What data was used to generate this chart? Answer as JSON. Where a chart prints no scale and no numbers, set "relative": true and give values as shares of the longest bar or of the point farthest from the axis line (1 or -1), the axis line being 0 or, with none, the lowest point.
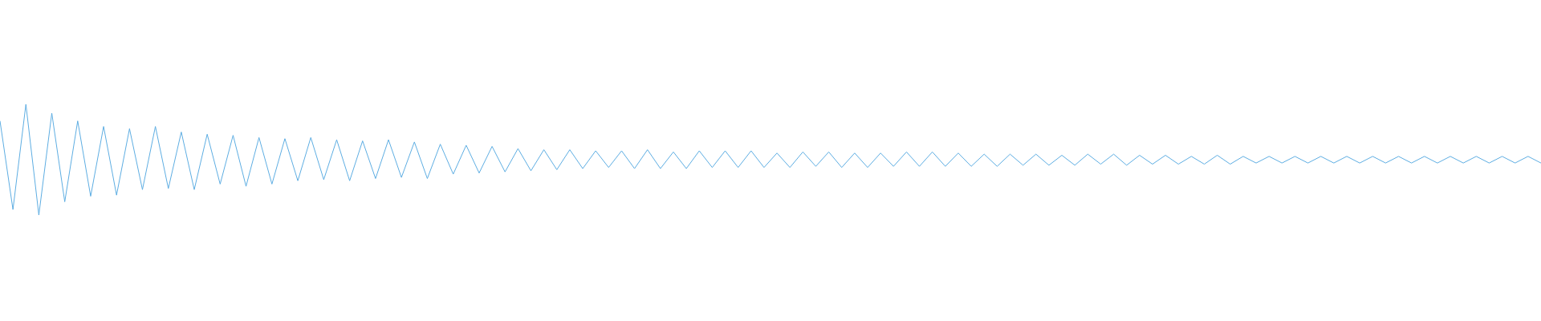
{
  "chart_data": {
    "type": "line",
    "relative": true,
    "marker": "none",
    "legend": false,
    "categories": [
      null,
      null,
      null,
      null,
      null,
      null,
      null,
      null,
      null,
      null,
      null,
      null,
      null,
      null,
      null,
      null,
      null,
      null,
      null,
      null,
      null,
      null,
      null,
      null,
      null,
      null,
      null,
      null,
      null,
      null,
      null,
      null,
      null,
      null,
      null,
      null,
      null,
      null,
      null,
      null,
      null,
      null,
      null,
      null,
      null,
      null,
      null,
      null,
      null,
      null,
      null,
      null,
      null,
      null,
      null,
      null,
      null,
      null,
      null,
      null,
      null,
      null,
      null,
      null,
      null,
      null,
      null,
      null,
      null,
      null,
      null,
      null,
      null,
      null,
      null,
      null,
      null,
      null,
      null,
      null,
      null,
      null,
      null,
      null,
      null,
      null,
      null,
      null,
      null,
      null,
      null,
      null,
      null,
      null,
      null,
      null,
      null,
      null,
      null,
      null,
      null,
      null,
      null,
      null,
      null,
      null,
      null,
      null,
      null,
      null,
      null,
      null,
      null,
      null,
      null,
      null,
      null,
      null,
      null,
      null
    ],
    "series": [
      {
        "color": "#5dade2",
        "values": [
          0.85,
          0.05,
          1.0,
          0,
          0.92,
          0.12,
          0.85,
          0.17,
          0.8,
          0.18,
          0.78,
          0.23,
          0.8,
          0.24,
          0.75,
          0.23,
          0.73,
          0.28,
          0.72,
          0.26,
          0.7,
          0.28,
          0.69,
          0.31,
          0.7,
          0.32,
          0.68,
          0.31,
          0.67,
          0.33,
          0.68,
          0.34,
          0.66,
          0.33,
          0.64,
          0.37,
          0.63,
          0.38,
          0.62,
          0.39,
          0.6,
          0.4,
          0.59,
          0.41,
          0.59,
          0.42,
          0.58,
          0.43,
          0.58,
          0.42,
          0.59,
          0.42,
          0.57,
          0.42,
          0.58,
          0.43,
          0.58,
          0.43,
          0.58,
          0.43,
          0.56,
          0.43,
          0.57,
          0.44,
          0.57,
          0.43,
          0.56,
          0.43,
          0.56,
          0.44,
          0.57,
          0.44,
          0.57,
          0.44,
          0.56,
          0.44,
          0.55,
          0.44,
          0.55,
          0.45,
          0.55,
          0.45,
          0.54,
          0.45,
          0.55,
          0.46,
          0.55,
          0.45,
          0.54,
          0.46,
          0.54,
          0.46,
          0.53,
          0.46,
          0.54,
          0.46,
          0.53,
          0.47,
          0.53,
          0.47,
          0.53,
          0.47,
          0.53,
          0.47,
          0.53,
          0.47,
          0.53,
          0.47,
          0.53,
          0.47,
          0.53,
          0.47,
          0.53,
          0.47,
          0.53,
          0.47,
          0.53,
          0.47,
          0.53,
          0.47
        ]
      }
    ]
  }
}
